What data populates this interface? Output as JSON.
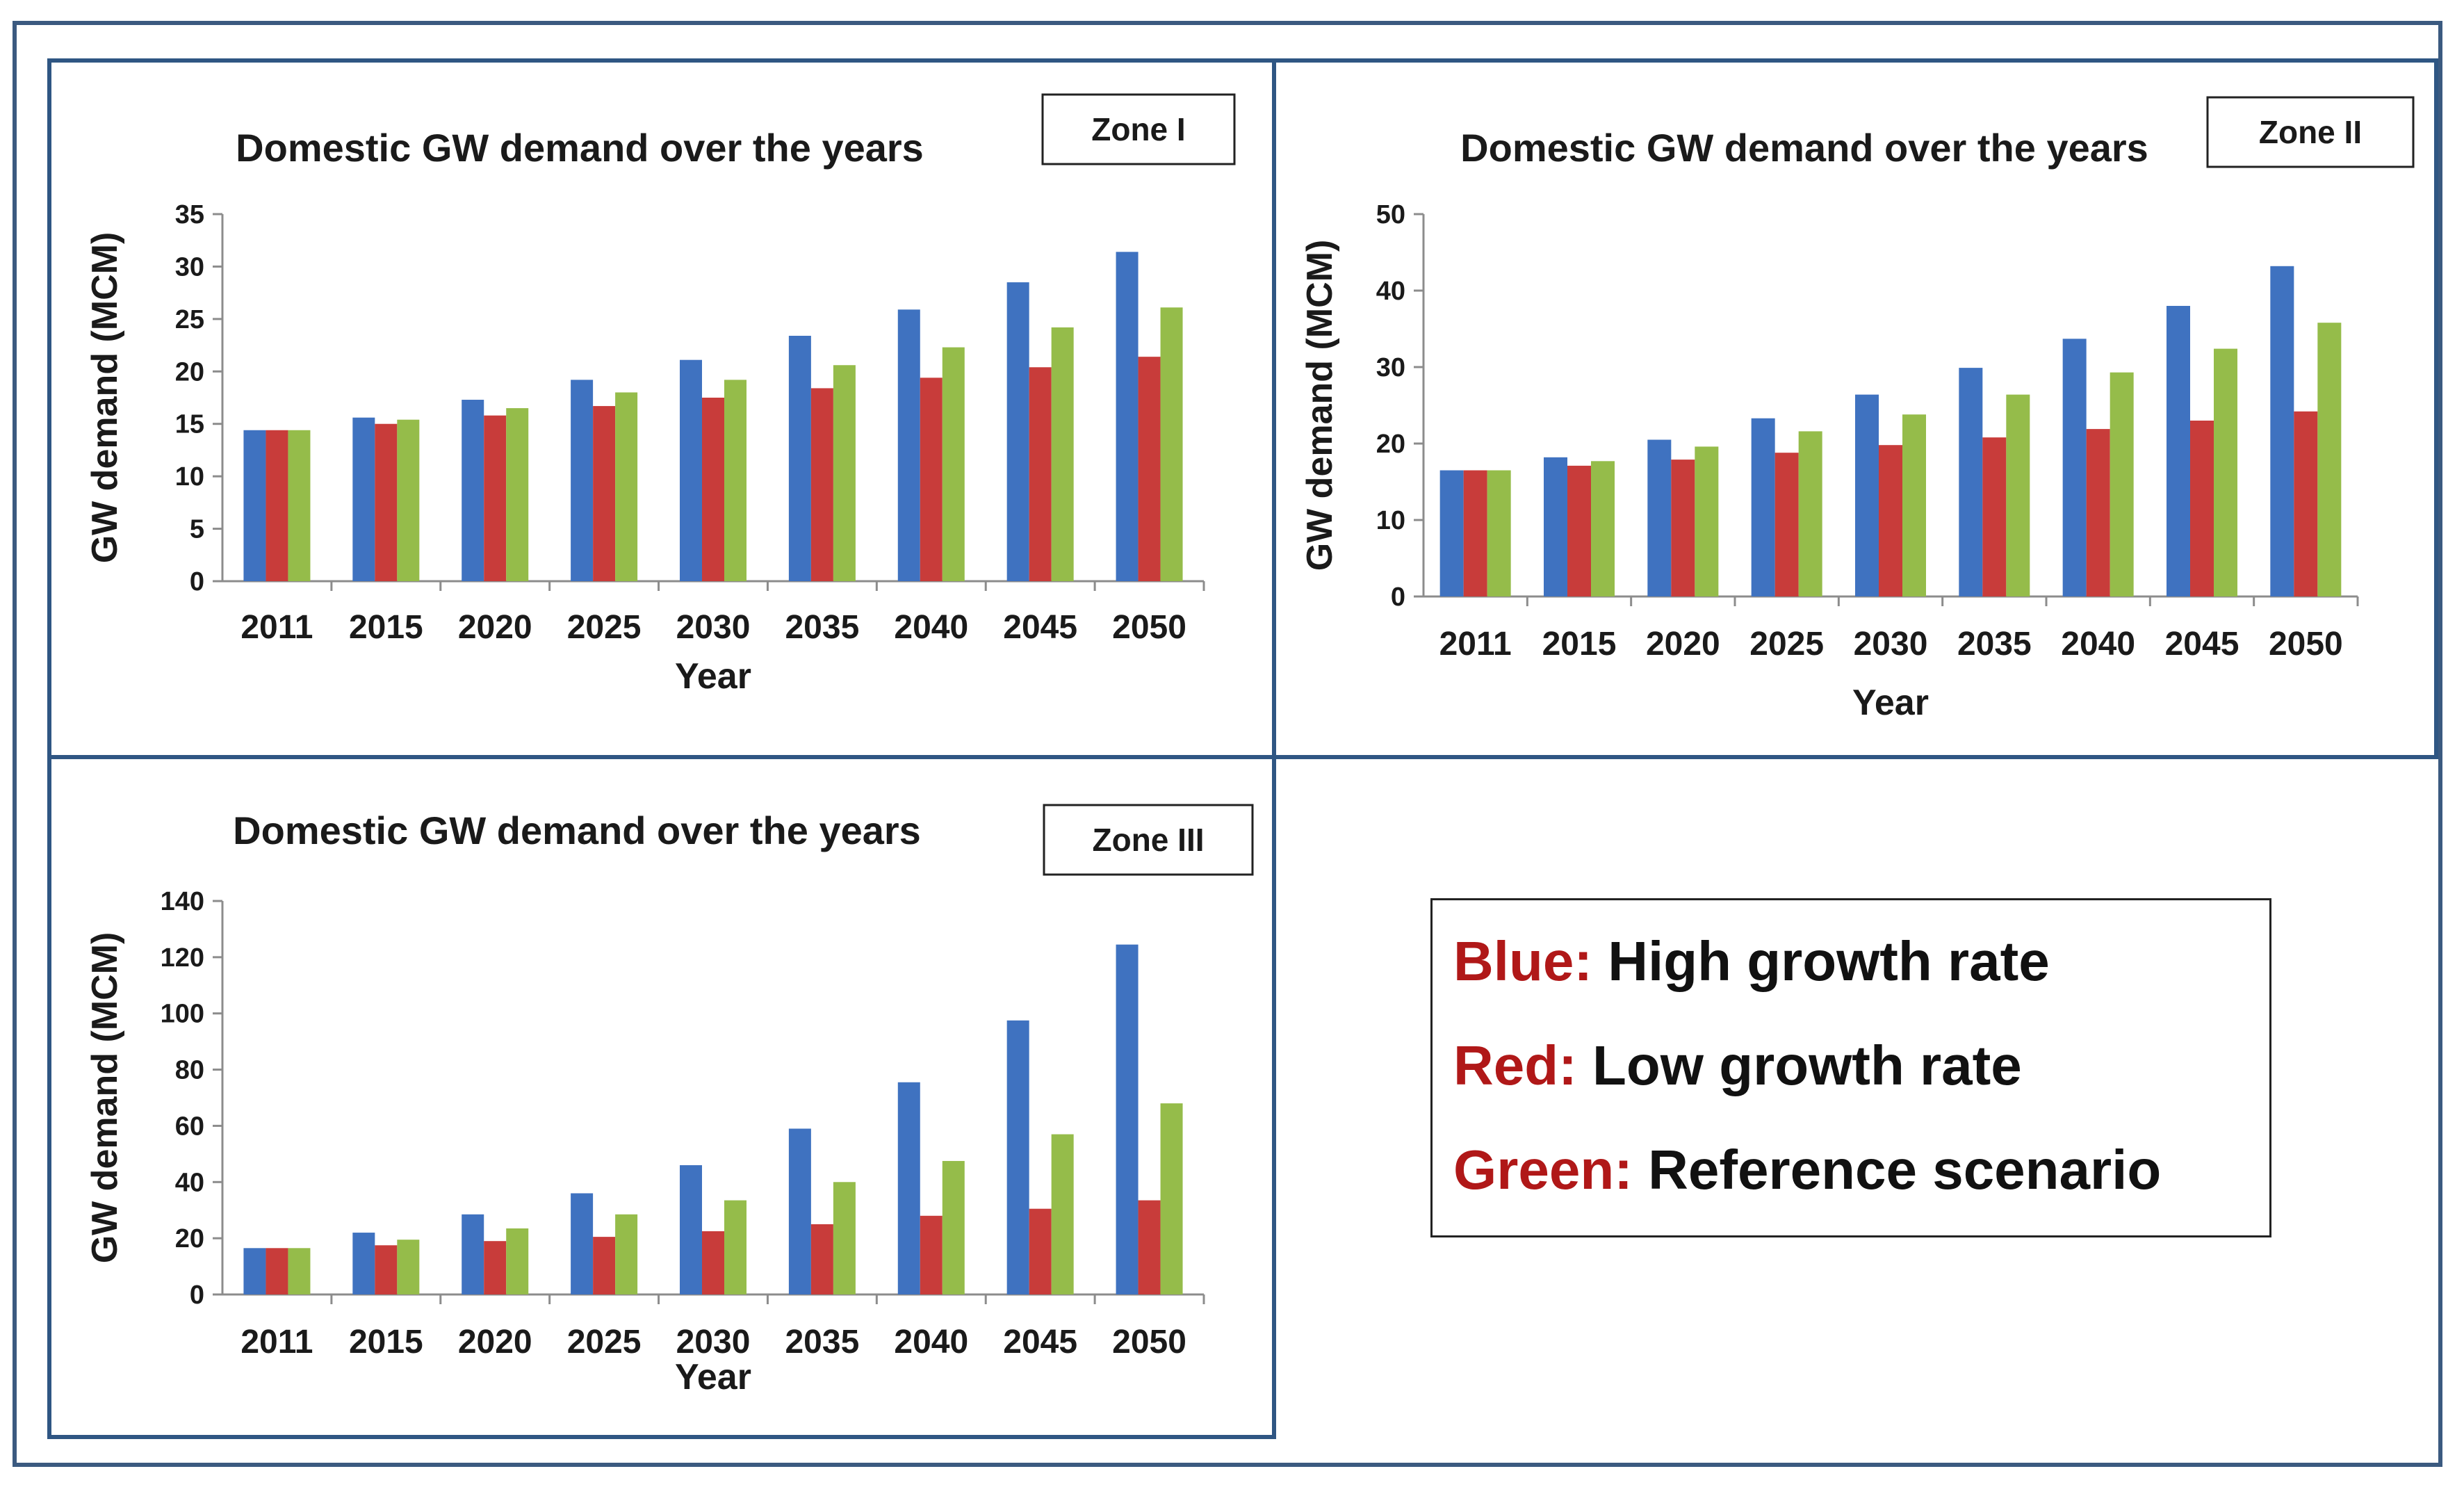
{
  "colors": {
    "high": "#3f72c0",
    "low": "#c83c3a",
    "ref": "#95bc4a",
    "frame": "#2f5683",
    "legend_key": "#b01818"
  },
  "chart_data": [
    {
      "type": "bar",
      "zone": "Zone I",
      "title": "Domestic GW demand over the years",
      "xlabel": "Year",
      "ylabel": "GW demand (MCM)",
      "ylim": [
        0,
        35
      ],
      "yticks": [
        0,
        5,
        10,
        15,
        20,
        25,
        30,
        35
      ],
      "categories": [
        "2011",
        "2015",
        "2020",
        "2025",
        "2030",
        "2035",
        "2040",
        "2045",
        "2050"
      ],
      "series": [
        {
          "name": "High growth rate",
          "values": [
            14.4,
            15.6,
            17.3,
            19.2,
            21.1,
            23.4,
            25.9,
            28.5,
            31.4
          ]
        },
        {
          "name": "Low growth rate",
          "values": [
            14.4,
            15.0,
            15.8,
            16.7,
            17.5,
            18.4,
            19.4,
            20.4,
            21.4
          ]
        },
        {
          "name": "Reference scenario",
          "values": [
            14.4,
            15.4,
            16.5,
            18.0,
            19.2,
            20.6,
            22.3,
            24.2,
            26.1
          ]
        }
      ]
    },
    {
      "type": "bar",
      "zone": "Zone II",
      "title": "Domestic GW demand over the years",
      "xlabel": "Year",
      "ylabel": "GW demand (MCM)",
      "ylim": [
        0,
        50
      ],
      "yticks": [
        0,
        10,
        20,
        30,
        40,
        50
      ],
      "categories": [
        "2011",
        "2015",
        "2020",
        "2025",
        "2030",
        "2035",
        "2040",
        "2045",
        "2050"
      ],
      "series": [
        {
          "name": "High growth rate",
          "values": [
            16.5,
            18.2,
            20.5,
            23.3,
            26.4,
            29.9,
            33.7,
            38.0,
            43.2
          ]
        },
        {
          "name": "Low growth rate",
          "values": [
            16.5,
            17.1,
            17.9,
            18.8,
            19.8,
            20.8,
            21.9,
            23.0,
            24.2
          ]
        },
        {
          "name": "Reference scenario",
          "values": [
            16.5,
            17.7,
            19.6,
            21.6,
            23.8,
            26.4,
            29.3,
            32.4,
            35.8
          ]
        }
      ]
    },
    {
      "type": "bar",
      "zone": "Zone III",
      "title": "Domestic GW demand over the years",
      "xlabel": "Year",
      "ylabel": "GW demand (MCM)",
      "ylim": [
        0,
        140
      ],
      "yticks": [
        0,
        20,
        40,
        60,
        80,
        100,
        120,
        140
      ],
      "categories": [
        "2011",
        "2015",
        "2020",
        "2025",
        "2030",
        "2035",
        "2040",
        "2045",
        "2050"
      ],
      "series": [
        {
          "name": "High growth rate",
          "values": [
            16.5,
            22.0,
            28.5,
            36.0,
            46.0,
            59.0,
            75.5,
            97.5,
            124.5
          ]
        },
        {
          "name": "Low growth rate",
          "values": [
            16.5,
            17.5,
            19.0,
            20.5,
            22.5,
            25.0,
            28.0,
            30.5,
            33.5
          ]
        },
        {
          "name": "Reference scenario",
          "values": [
            16.5,
            19.5,
            23.5,
            28.5,
            33.5,
            40.0,
            47.5,
            57.0,
            68.0
          ]
        }
      ]
    }
  ],
  "legend": [
    {
      "key": "Blue:",
      "desc": "High growth rate"
    },
    {
      "key": "Red:",
      "desc": "Low growth rate"
    },
    {
      "key": "Green:",
      "desc": "Reference scenario"
    }
  ]
}
